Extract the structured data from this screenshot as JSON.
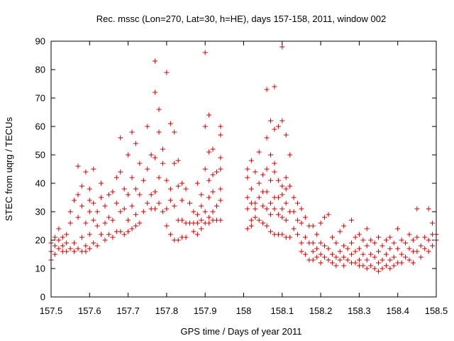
{
  "chart_data": {
    "type": "scatter",
    "title": "Rec. mssc (Lon=270, Lat=30, h=HE), days 157-158, 2011, window 002",
    "xlabel": "GPS time / Days of year 2011",
    "ylabel": "STEC from uqrg / TECUs",
    "xlim": [
      157.5,
      158.5
    ],
    "ylim": [
      0,
      90
    ],
    "xticks": [
      157.5,
      157.6,
      157.7,
      157.8,
      157.9,
      158.0,
      158.1,
      158.2,
      158.3,
      158.4,
      158.5
    ],
    "xtick_labels": [
      "157.5",
      "157.6",
      "157.7",
      "157.8",
      "157.9",
      "158",
      "158.1",
      "158.2",
      "158.3",
      "158.4",
      "158.5"
    ],
    "yticks": [
      0,
      10,
      20,
      30,
      40,
      50,
      60,
      70,
      80,
      90
    ],
    "ytick_labels": [
      "0",
      "10",
      "20",
      "30",
      "40",
      "50",
      "60",
      "70",
      "80",
      "90"
    ],
    "grid": false,
    "legend": "none",
    "marker": "+",
    "color": "#cc0000",
    "points": [
      [
        157.5,
        19
      ],
      [
        157.5,
        16
      ],
      [
        157.5,
        13
      ],
      [
        157.51,
        21
      ],
      [
        157.51,
        18
      ],
      [
        157.51,
        15
      ],
      [
        157.52,
        20
      ],
      [
        157.52,
        17
      ],
      [
        157.52,
        24
      ],
      [
        157.53,
        18
      ],
      [
        157.53,
        16
      ],
      [
        157.53,
        21
      ],
      [
        157.54,
        22
      ],
      [
        157.54,
        16
      ],
      [
        157.54,
        19
      ],
      [
        157.55,
        26
      ],
      [
        157.55,
        17
      ],
      [
        157.55,
        30
      ],
      [
        157.56,
        34
      ],
      [
        157.56,
        19
      ],
      [
        157.56,
        16
      ],
      [
        157.57,
        28
      ],
      [
        157.57,
        17
      ],
      [
        157.57,
        46
      ],
      [
        157.57,
        36
      ],
      [
        157.58,
        32
      ],
      [
        157.58,
        21
      ],
      [
        157.58,
        16
      ],
      [
        157.58,
        39
      ],
      [
        157.59,
        44
      ],
      [
        157.59,
        26
      ],
      [
        157.59,
        18
      ],
      [
        157.59,
        16
      ],
      [
        157.6,
        38
      ],
      [
        157.6,
        34
      ],
      [
        157.6,
        30
      ],
      [
        157.6,
        22
      ],
      [
        157.6,
        17
      ],
      [
        157.61,
        33
      ],
      [
        157.61,
        27
      ],
      [
        157.61,
        19
      ],
      [
        157.61,
        45
      ],
      [
        157.62,
        30
      ],
      [
        157.62,
        25
      ],
      [
        157.62,
        18
      ],
      [
        157.63,
        35
      ],
      [
        157.63,
        22
      ],
      [
        157.63,
        40
      ],
      [
        157.64,
        32
      ],
      [
        157.64,
        26
      ],
      [
        157.64,
        20
      ],
      [
        157.65,
        36
      ],
      [
        157.65,
        28
      ],
      [
        157.65,
        22
      ],
      [
        157.66,
        37
      ],
      [
        157.66,
        27
      ],
      [
        157.66,
        21
      ],
      [
        157.67,
        42
      ],
      [
        157.67,
        33
      ],
      [
        157.67,
        23
      ],
      [
        157.68,
        56
      ],
      [
        157.68,
        44
      ],
      [
        157.68,
        30
      ],
      [
        157.68,
        23
      ],
      [
        157.69,
        38
      ],
      [
        157.69,
        31
      ],
      [
        157.69,
        22
      ],
      [
        157.7,
        50
      ],
      [
        157.7,
        36
      ],
      [
        157.7,
        27
      ],
      [
        157.7,
        23
      ],
      [
        157.71,
        58
      ],
      [
        157.71,
        42
      ],
      [
        157.71,
        32
      ],
      [
        157.71,
        24
      ],
      [
        157.72,
        54
      ],
      [
        157.72,
        38
      ],
      [
        157.72,
        29
      ],
      [
        157.72,
        25
      ],
      [
        157.73,
        47
      ],
      [
        157.73,
        36
      ],
      [
        157.73,
        26
      ],
      [
        157.74,
        41
      ],
      [
        157.74,
        30
      ],
      [
        157.75,
        60
      ],
      [
        157.75,
        45
      ],
      [
        157.75,
        33
      ],
      [
        157.76,
        50
      ],
      [
        157.76,
        36
      ],
      [
        157.76,
        31
      ],
      [
        157.77,
        83
      ],
      [
        157.77,
        72
      ],
      [
        157.77,
        49
      ],
      [
        157.77,
        37
      ],
      [
        157.77,
        31
      ],
      [
        157.78,
        66
      ],
      [
        157.78,
        58
      ],
      [
        157.78,
        42
      ],
      [
        157.78,
        33
      ],
      [
        157.79,
        52
      ],
      [
        157.79,
        47
      ],
      [
        157.79,
        30
      ],
      [
        157.8,
        79
      ],
      [
        157.8,
        41
      ],
      [
        157.8,
        31
      ],
      [
        157.8,
        25
      ],
      [
        157.81,
        61
      ],
      [
        157.81,
        38
      ],
      [
        157.81,
        34
      ],
      [
        157.81,
        22
      ],
      [
        157.82,
        58
      ],
      [
        157.82,
        47
      ],
      [
        157.82,
        32
      ],
      [
        157.82,
        20
      ],
      [
        157.83,
        48
      ],
      [
        157.83,
        39
      ],
      [
        157.83,
        27
      ],
      [
        157.83,
        20
      ],
      [
        157.84,
        40
      ],
      [
        157.84,
        34
      ],
      [
        157.84,
        27
      ],
      [
        157.84,
        21
      ],
      [
        157.85,
        38
      ],
      [
        157.85,
        26
      ],
      [
        157.85,
        21
      ],
      [
        157.86,
        33
      ],
      [
        157.86,
        26
      ],
      [
        157.87,
        30
      ],
      [
        157.87,
        26
      ],
      [
        157.87,
        23
      ],
      [
        157.88,
        40
      ],
      [
        157.88,
        29
      ],
      [
        157.88,
        26
      ],
      [
        157.88,
        22
      ],
      [
        157.89,
        36
      ],
      [
        157.89,
        32
      ],
      [
        157.89,
        27
      ],
      [
        157.89,
        24
      ],
      [
        157.9,
        86
      ],
      [
        157.9,
        60
      ],
      [
        157.9,
        45
      ],
      [
        157.9,
        30
      ],
      [
        157.9,
        26
      ],
      [
        157.91,
        64
      ],
      [
        157.91,
        51
      ],
      [
        157.91,
        41
      ],
      [
        157.91,
        35
      ],
      [
        157.91,
        28
      ],
      [
        157.91,
        26
      ],
      [
        157.92,
        52
      ],
      [
        157.92,
        43
      ],
      [
        157.92,
        37
      ],
      [
        157.92,
        30
      ],
      [
        157.92,
        27
      ],
      [
        157.93,
        44
      ],
      [
        157.93,
        32
      ],
      [
        157.93,
        27
      ],
      [
        157.94,
        60
      ],
      [
        157.94,
        57
      ],
      [
        157.94,
        49
      ],
      [
        157.94,
        45
      ],
      [
        157.94,
        38
      ],
      [
        157.94,
        34
      ],
      [
        157.94,
        27
      ],
      [
        158.01,
        45
      ],
      [
        158.01,
        42
      ],
      [
        158.01,
        35
      ],
      [
        158.01,
        31
      ],
      [
        158.01,
        24
      ],
      [
        158.02,
        48
      ],
      [
        158.02,
        38
      ],
      [
        158.02,
        33
      ],
      [
        158.02,
        27
      ],
      [
        158.02,
        25
      ],
      [
        158.03,
        44
      ],
      [
        158.03,
        33
      ],
      [
        158.03,
        31
      ],
      [
        158.03,
        28
      ],
      [
        158.04,
        51
      ],
      [
        158.04,
        40
      ],
      [
        158.04,
        35
      ],
      [
        158.04,
        27
      ],
      [
        158.05,
        43
      ],
      [
        158.05,
        37
      ],
      [
        158.05,
        32
      ],
      [
        158.05,
        26
      ],
      [
        158.06,
        73
      ],
      [
        158.06,
        56
      ],
      [
        158.06,
        45
      ],
      [
        158.06,
        37
      ],
      [
        158.06,
        31
      ],
      [
        158.06,
        25
      ],
      [
        158.07,
        62
      ],
      [
        158.07,
        50
      ],
      [
        158.07,
        41
      ],
      [
        158.07,
        33
      ],
      [
        158.07,
        29
      ],
      [
        158.07,
        23
      ],
      [
        158.08,
        74
      ],
      [
        158.08,
        59
      ],
      [
        158.08,
        47
      ],
      [
        158.08,
        44
      ],
      [
        158.08,
        35
      ],
      [
        158.08,
        31
      ],
      [
        158.08,
        22
      ],
      [
        158.09,
        60
      ],
      [
        158.09,
        41
      ],
      [
        158.09,
        35
      ],
      [
        158.09,
        29
      ],
      [
        158.09,
        22
      ],
      [
        158.1,
        88
      ],
      [
        158.1,
        62
      ],
      [
        158.1,
        39
      ],
      [
        158.1,
        36
      ],
      [
        158.1,
        31
      ],
      [
        158.1,
        28
      ],
      [
        158.1,
        22
      ],
      [
        158.11,
        57
      ],
      [
        158.11,
        42
      ],
      [
        158.11,
        38
      ],
      [
        158.11,
        33
      ],
      [
        158.11,
        27
      ],
      [
        158.11,
        21
      ],
      [
        158.12,
        50
      ],
      [
        158.12,
        39
      ],
      [
        158.12,
        30
      ],
      [
        158.12,
        21
      ],
      [
        158.13,
        35
      ],
      [
        158.13,
        30
      ],
      [
        158.13,
        24
      ],
      [
        158.14,
        33
      ],
      [
        158.14,
        27
      ],
      [
        158.14,
        22
      ],
      [
        158.15,
        31
      ],
      [
        158.15,
        26
      ],
      [
        158.15,
        19
      ],
      [
        158.15,
        16
      ],
      [
        158.16,
        28
      ],
      [
        158.16,
        21
      ],
      [
        158.16,
        15
      ],
      [
        158.17,
        25
      ],
      [
        158.17,
        19
      ],
      [
        158.17,
        13
      ],
      [
        158.18,
        25
      ],
      [
        158.18,
        19
      ],
      [
        158.18,
        16
      ],
      [
        158.18,
        13
      ],
      [
        158.19,
        22
      ],
      [
        158.19,
        17
      ],
      [
        158.19,
        14
      ],
      [
        158.2,
        26
      ],
      [
        158.2,
        19
      ],
      [
        158.2,
        15
      ],
      [
        158.2,
        12
      ],
      [
        158.21,
        28
      ],
      [
        158.21,
        18
      ],
      [
        158.21,
        14
      ],
      [
        158.22,
        29
      ],
      [
        158.22,
        17
      ],
      [
        158.22,
        13
      ],
      [
        158.23,
        21
      ],
      [
        158.23,
        15
      ],
      [
        158.23,
        12
      ],
      [
        158.24,
        19
      ],
      [
        158.24,
        14
      ],
      [
        158.24,
        11
      ],
      [
        158.25,
        23
      ],
      [
        158.25,
        16
      ],
      [
        158.25,
        13
      ],
      [
        158.26,
        25
      ],
      [
        158.26,
        18
      ],
      [
        158.26,
        14
      ],
      [
        158.26,
        11
      ],
      [
        158.27,
        17
      ],
      [
        158.27,
        13
      ],
      [
        158.28,
        27
      ],
      [
        158.28,
        19
      ],
      [
        158.28,
        15
      ],
      [
        158.28,
        12
      ],
      [
        158.29,
        21
      ],
      [
        158.29,
        16
      ],
      [
        158.29,
        12
      ],
      [
        158.3,
        22
      ],
      [
        158.3,
        17
      ],
      [
        158.3,
        13
      ],
      [
        158.3,
        11
      ],
      [
        158.31,
        20
      ],
      [
        158.31,
        15
      ],
      [
        158.31,
        11
      ],
      [
        158.32,
        24
      ],
      [
        158.32,
        18
      ],
      [
        158.32,
        13
      ],
      [
        158.32,
        10
      ],
      [
        158.33,
        20
      ],
      [
        158.33,
        15
      ],
      [
        158.33,
        11
      ],
      [
        158.34,
        19
      ],
      [
        158.34,
        14
      ],
      [
        158.34,
        10
      ],
      [
        158.35,
        21
      ],
      [
        158.35,
        16
      ],
      [
        158.35,
        12
      ],
      [
        158.35,
        9
      ],
      [
        158.36,
        18
      ],
      [
        158.36,
        13
      ],
      [
        158.36,
        10
      ],
      [
        158.37,
        20
      ],
      [
        158.37,
        15
      ],
      [
        158.37,
        11
      ],
      [
        158.38,
        21
      ],
      [
        158.38,
        17
      ],
      [
        158.38,
        13
      ],
      [
        158.38,
        10
      ],
      [
        158.39,
        19
      ],
      [
        158.39,
        14
      ],
      [
        158.39,
        11
      ],
      [
        158.4,
        24
      ],
      [
        158.4,
        17
      ],
      [
        158.4,
        12
      ],
      [
        158.41,
        20
      ],
      [
        158.41,
        15
      ],
      [
        158.41,
        12
      ],
      [
        158.42,
        19
      ],
      [
        158.42,
        14
      ],
      [
        158.43,
        22
      ],
      [
        158.43,
        17
      ],
      [
        158.43,
        13
      ],
      [
        158.44,
        20
      ],
      [
        158.44,
        16
      ],
      [
        158.44,
        12
      ],
      [
        158.45,
        31
      ],
      [
        158.45,
        21
      ],
      [
        158.45,
        16
      ],
      [
        158.46,
        18
      ],
      [
        158.46,
        14
      ],
      [
        158.47,
        21
      ],
      [
        158.47,
        17
      ],
      [
        158.48,
        31
      ],
      [
        158.48,
        20
      ],
      [
        158.48,
        16
      ],
      [
        158.49,
        26
      ],
      [
        158.49,
        22
      ],
      [
        158.49,
        18
      ],
      [
        158.5,
        22
      ],
      [
        158.5,
        20
      ]
    ]
  }
}
